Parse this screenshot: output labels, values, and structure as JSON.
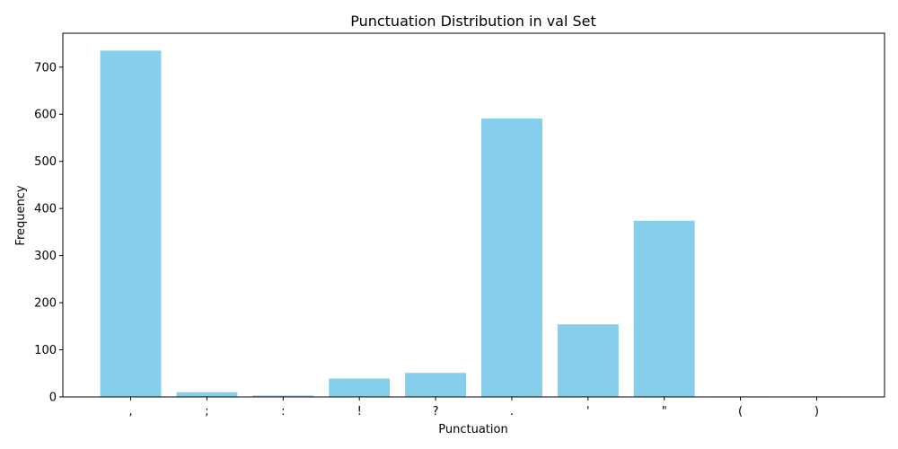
{
  "chart_data": {
    "type": "bar",
    "title": "Punctuation Distribution in val Set",
    "xlabel": "Punctuation",
    "ylabel": "Frequency",
    "categories": [
      ",",
      ";",
      ":",
      "!",
      "?",
      ".",
      "'",
      "\"",
      "(",
      ")"
    ],
    "values": [
      735,
      10,
      3,
      39,
      51,
      591,
      154,
      374,
      1,
      1
    ],
    "ylim": [
      0,
      772
    ],
    "yticks": [
      0,
      100,
      200,
      300,
      400,
      500,
      600,
      700
    ],
    "grid": false,
    "legend": "none",
    "bar_color": "#87ceeb"
  }
}
